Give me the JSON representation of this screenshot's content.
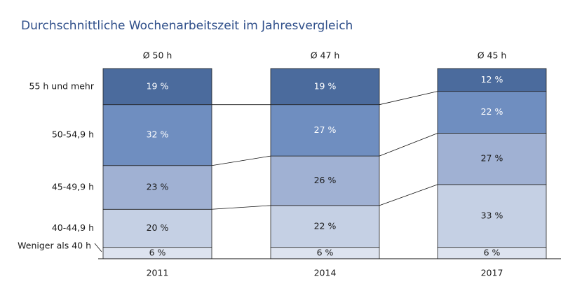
{
  "chart_data": {
    "type": "bar",
    "stacked": true,
    "title": "Durchschnittliche Wochenarbeitszeit im Jahresvergleich",
    "categories": [
      "2011",
      "2014",
      "2017"
    ],
    "averages": [
      "Ø 50 h",
      "Ø 47 h",
      "Ø 45 h"
    ],
    "series": [
      {
        "name": "Weniger als 40 h",
        "color": "#dde3ef",
        "values": [
          6,
          6,
          6
        ],
        "value_labels": [
          "6 %",
          "6 %",
          "6 %"
        ]
      },
      {
        "name": "40-44,9 h",
        "color": "#c5d0e4",
        "values": [
          20,
          22,
          33
        ],
        "value_labels": [
          "20 %",
          "22 %",
          "33 %"
        ]
      },
      {
        "name": "45-49,9 h",
        "color": "#a0b1d3",
        "values": [
          23,
          26,
          27
        ],
        "value_labels": [
          "23 %",
          "26 %",
          "27 %"
        ]
      },
      {
        "name": "50-54,9 h",
        "color": "#6f8ec0",
        "values": [
          32,
          27,
          22
        ],
        "value_labels": [
          "32 %",
          "27 %",
          "22 %"
        ]
      },
      {
        "name": "55 h und mehr",
        "color": "#4b6b9d",
        "values": [
          19,
          19,
          12
        ],
        "value_labels": [
          "19 %",
          "19 %",
          "12 %"
        ]
      }
    ]
  }
}
